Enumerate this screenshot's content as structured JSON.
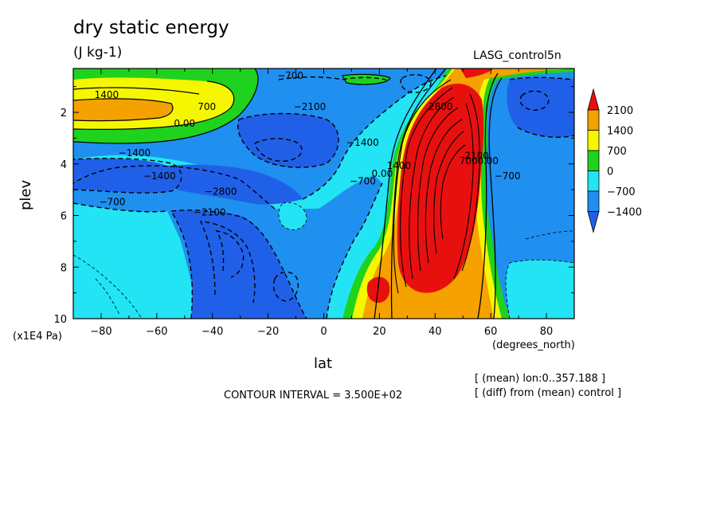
{
  "figure": {
    "title": "dry static energy",
    "units": "(J kg-1)",
    "dataset": "LASG_control5n",
    "contour_interval": "CONTOUR INTERVAL = 3.500E+02",
    "info_lon": "[ (mean) lon:0..357.188 ]",
    "info_diff": "[ (diff) from (mean) control ]"
  },
  "chart_data": {
    "type": "heatmap",
    "xlabel": "lat",
    "x_units": "(degrees_north)",
    "ylabel": "plev",
    "y_units": "(x1E4 Pa)",
    "xlim": [
      -90,
      90
    ],
    "ylim": [
      10,
      0.3
    ],
    "x_ticks": [
      -80,
      -60,
      -40,
      -20,
      0,
      20,
      40,
      60,
      80
    ],
    "y_ticks": [
      2,
      4,
      6,
      8,
      10
    ],
    "legend": {
      "placement": "right",
      "labels": [
        "2100",
        "1400",
        "700",
        "0",
        "-700",
        "-1400"
      ],
      "colors": [
        "#e8100f",
        "#f5a100",
        "#f6f600",
        "#1ed21e",
        "#22e4f5",
        "#1f8ff0",
        "#2060e8"
      ]
    },
    "contour_labels": [
      {
        "text": "1400",
        "lat": -78,
        "plev": 1.45
      },
      {
        "text": "700",
        "lat": -42,
        "plev": 1.9
      },
      {
        "text": "0.00",
        "lat": -50,
        "plev": 2.55
      },
      {
        "text": "-700",
        "lat": -12,
        "plev": 0.7
      },
      {
        "text": "-2100",
        "lat": -5,
        "plev": 1.9
      },
      {
        "text": "-1400",
        "lat": -68,
        "plev": 3.7
      },
      {
        "text": "-1400",
        "lat": -59,
        "plev": 4.6
      },
      {
        "text": "-700",
        "lat": -76,
        "plev": 5.6
      },
      {
        "text": "-2800",
        "lat": -37,
        "plev": 5.2
      },
      {
        "text": "-2100",
        "lat": -41,
        "plev": 6.0
      },
      {
        "text": "-1400",
        "lat": 14,
        "plev": 3.3
      },
      {
        "text": "-700",
        "lat": 14,
        "plev": 4.8
      },
      {
        "text": "0.00",
        "lat": 21,
        "plev": 4.5
      },
      {
        "text": "1400",
        "lat": 27,
        "plev": 4.2
      },
      {
        "text": "2800",
        "lat": 42,
        "plev": 1.9
      },
      {
        "text": "2100",
        "lat": 55,
        "plev": 3.8
      },
      {
        "text": "700",
        "lat": 52,
        "plev": 4.0
      },
      {
        "text": "0.00",
        "lat": 59,
        "plev": 4.0
      },
      {
        "text": "-700",
        "lat": 66,
        "plev": 4.6
      }
    ]
  }
}
